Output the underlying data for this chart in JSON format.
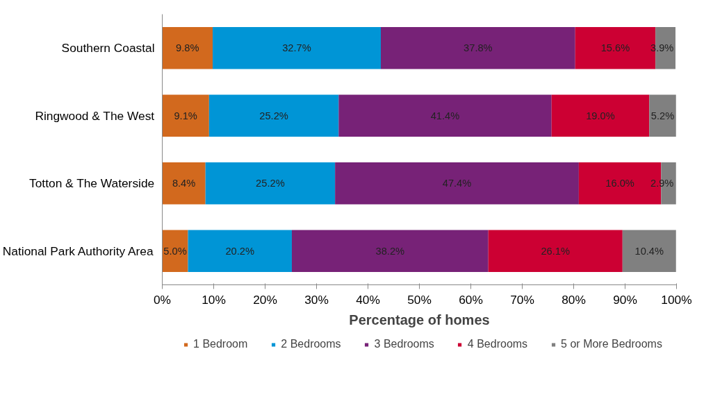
{
  "chart_data": {
    "type": "bar",
    "orientation": "horizontal",
    "stacked": true,
    "xlabel": "Percentage of homes",
    "categories": [
      "Southern Coastal",
      "Ringwood & The West",
      "Totton & The Waterside",
      "National Park Authority Area"
    ],
    "series": [
      {
        "name": "1 Bedroom",
        "color": "#d2691e",
        "values": [
          9.8,
          9.1,
          8.4,
          5.0
        ],
        "value_labels": [
          "9.8%",
          "9.1%",
          "8.4%",
          "5.0%"
        ]
      },
      {
        "name": "2 Bedrooms",
        "color": "#0095d6",
        "values": [
          32.7,
          25.2,
          25.2,
          20.2
        ],
        "value_labels": [
          "32.7%",
          "25.2%",
          "25.2%",
          "20.2%"
        ]
      },
      {
        "name": "3 Bedrooms",
        "color": "#772277",
        "values": [
          37.8,
          41.4,
          47.4,
          38.2
        ],
        "value_labels": [
          "37.8%",
          "41.4%",
          "47.4%",
          "38.2%"
        ]
      },
      {
        "name": "4 Bedrooms",
        "color": "#cc0033",
        "values": [
          15.6,
          19.0,
          16.0,
          26.1
        ],
        "value_labels": [
          "15.6%",
          "19.0%",
          "16.0%",
          "26.1%"
        ]
      },
      {
        "name": "5 or More Bedrooms",
        "color": "#808080",
        "values": [
          3.9,
          5.2,
          2.9,
          10.4
        ],
        "value_labels": [
          "3.9%",
          "5.2%",
          "2.9%",
          "10.4%"
        ]
      }
    ],
    "xlim": [
      0,
      100
    ],
    "xticks": [
      {
        "value": 0,
        "label": "0%"
      },
      {
        "value": 10,
        "label": "10%"
      },
      {
        "value": 20,
        "label": "20%"
      },
      {
        "value": 30,
        "label": "30%"
      },
      {
        "value": 40,
        "label": "40%"
      },
      {
        "value": 50,
        "label": "50%"
      },
      {
        "value": 60,
        "label": "60%"
      },
      {
        "value": 70,
        "label": "70%"
      },
      {
        "value": 80,
        "label": "80%"
      },
      {
        "value": 90,
        "label": "90%"
      },
      {
        "value": 100,
        "label": "100%"
      }
    ],
    "legend": "bottom"
  }
}
